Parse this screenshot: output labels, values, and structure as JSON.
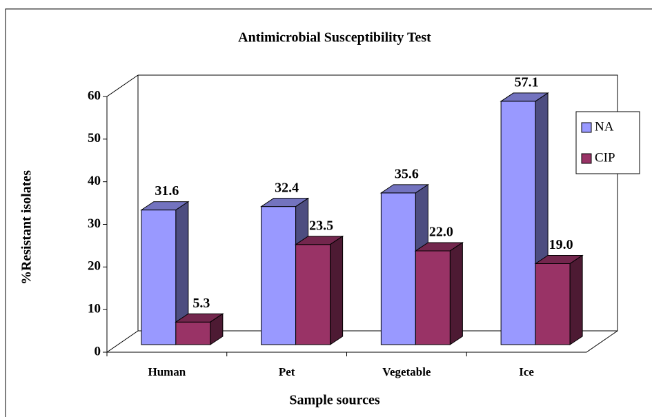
{
  "chart_data": {
    "type": "bar3d",
    "title": "Antimicrobial Susceptibility Test",
    "x_label": "Sample sources",
    "y_label": "%Resistant isolates",
    "categories": [
      "Human",
      "Pet",
      "Vegetable",
      "Ice"
    ],
    "series": [
      {
        "name": "NA",
        "color": "#9999ff",
        "values": [
          31.6,
          32.4,
          35.6,
          57.1
        ],
        "value_labels": [
          "31.6",
          "32.4",
          "35.6",
          "57.1"
        ]
      },
      {
        "name": "CIP",
        "color": "#993366",
        "values": [
          5.3,
          23.5,
          22.0,
          19.0
        ],
        "value_labels": [
          "5.3",
          "23.5",
          "22.0",
          "19.0"
        ]
      }
    ],
    "ylim": [
      0,
      60
    ],
    "yticks": [
      0,
      10,
      20,
      30,
      40,
      50,
      60
    ],
    "grid": false,
    "legend": "right"
  }
}
